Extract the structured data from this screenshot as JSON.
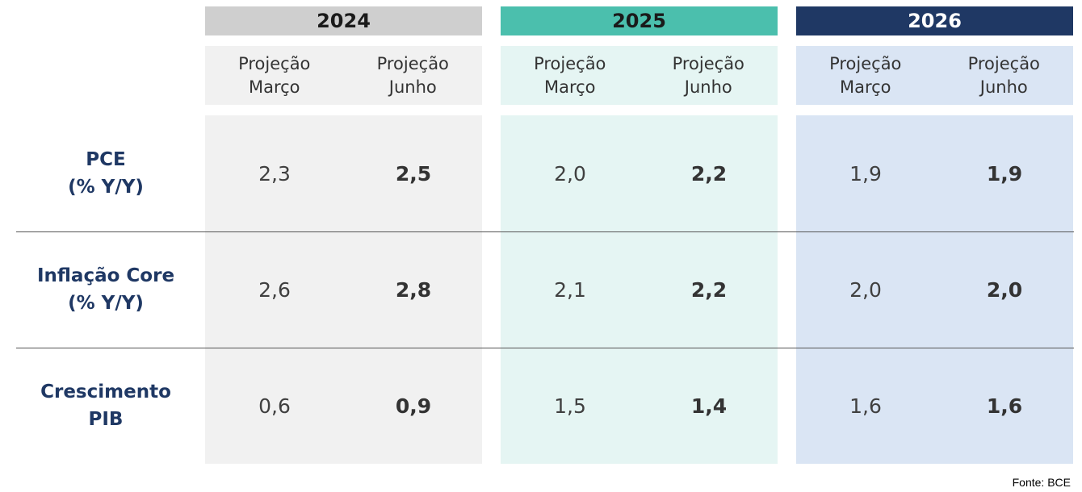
{
  "colors": {
    "year_2024": "#cfcfcf",
    "year_2025": "#4bbfad",
    "year_2026": "#1f3864",
    "bg_2024": "#f1f1f1",
    "bg_2025": "#e5f5f3",
    "bg_2026": "#dae5f4",
    "label_text": "#1f3864"
  },
  "years": [
    {
      "label": "2024",
      "sub": [
        [
          "Projeção",
          "Março"
        ],
        [
          "Projeção",
          "Junho"
        ]
      ]
    },
    {
      "label": "2025",
      "sub": [
        [
          "Projeção",
          "Março"
        ],
        [
          "Projeção",
          "Junho"
        ]
      ]
    },
    {
      "label": "2026",
      "sub": [
        [
          "Projeção",
          "Março"
        ],
        [
          "Projeção",
          "Junho"
        ]
      ]
    }
  ],
  "rows": [
    {
      "label": [
        "PCE",
        "(% Y/Y)"
      ],
      "values": [
        "2,3",
        "2,5",
        "2,0",
        "2,2",
        "1,9",
        "1,9"
      ]
    },
    {
      "label": [
        "Inflação Core",
        "(% Y/Y)"
      ],
      "values": [
        "2,6",
        "2,8",
        "2,1",
        "2,2",
        "2,0",
        "2,0"
      ]
    },
    {
      "label": [
        "Crescimento",
        "PIB"
      ],
      "values": [
        "0,6",
        "0,9",
        "1,5",
        "1,4",
        "1,6",
        "1,6"
      ]
    }
  ],
  "source": "Fonte: BCE"
}
